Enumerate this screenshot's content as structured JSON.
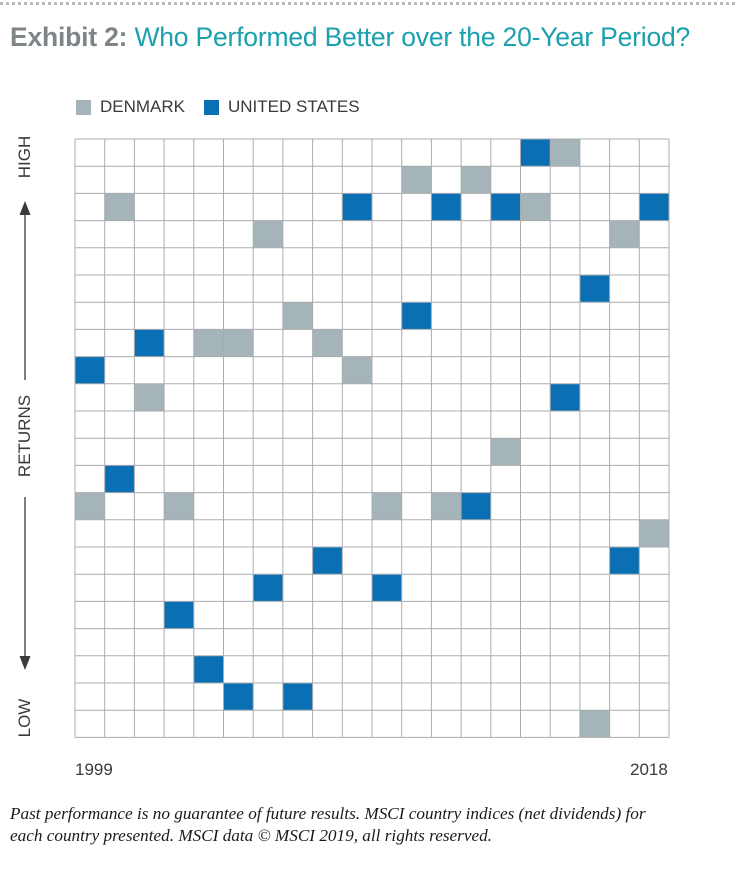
{
  "header": {
    "exhibit_label": "Exhibit 2:",
    "title": "Who Performed Better over the 20-Year Period?"
  },
  "colors": {
    "denmark": "#a5b4b9",
    "united_states": "#0a6fb3",
    "grid": "#a9acaf",
    "title_accent": "#1ba0ae",
    "exhibit_gray": "#7e8588"
  },
  "legend": [
    {
      "label": "DENMARK",
      "color": "#a5b4b9"
    },
    {
      "label": "UNITED STATES",
      "color": "#0a6fb3"
    }
  ],
  "y_axis": {
    "high_label": "HIGH",
    "middle_label": "RETURNS",
    "low_label": "LOW"
  },
  "x_axis": {
    "start_label": "1999",
    "end_label": "2018"
  },
  "chart_data": {
    "type": "heatmap",
    "description_of_axes": "columns are years from 1999 to 2018; rows are return rank from highest (1) to lowest (22)",
    "x": [
      1999,
      2000,
      2001,
      2002,
      2003,
      2004,
      2005,
      2006,
      2007,
      2008,
      2009,
      2010,
      2011,
      2012,
      2013,
      2014,
      2015,
      2016,
      2017,
      2018
    ],
    "num_rows": 22,
    "series": [
      {
        "name": "DENMARK",
        "color": "#a5b4b9",
        "rank": [
          14,
          3,
          10,
          14,
          8,
          8,
          4,
          7,
          8,
          9,
          14,
          2,
          14,
          2,
          12,
          3,
          1,
          22,
          4,
          15
        ]
      },
      {
        "name": "UNITED STATES",
        "color": "#0a6fb3",
        "rank": [
          9,
          13,
          8,
          18,
          20,
          21,
          17,
          21,
          16,
          3,
          17,
          7,
          3,
          14,
          3,
          1,
          10,
          6,
          16,
          3
        ]
      }
    ]
  },
  "footnote": {
    "text": "Past performance is no guarantee of future results. MSCI country indices (net dividends) for each country presented. MSCI data © MSCI 2019, all rights reserved."
  }
}
